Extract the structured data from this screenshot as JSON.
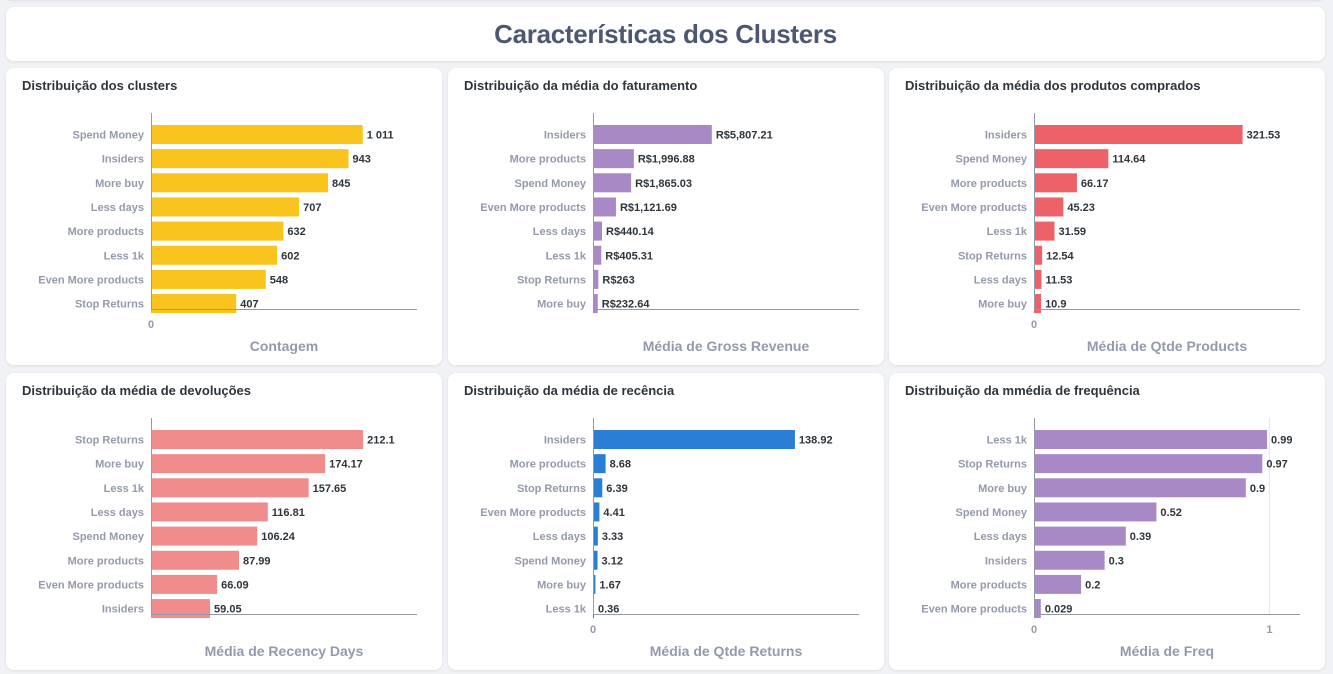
{
  "page": {
    "title": "Características dos Clusters"
  },
  "chart_data": [
    {
      "type": "bar",
      "orientation": "horizontal",
      "title": "Distribuição dos clusters",
      "xlabel": "Contagem",
      "color": "#f9c41d",
      "xlim": [
        0,
        1270
      ],
      "ticks": [
        {
          "value": 0,
          "label": "0"
        }
      ],
      "categories": [
        "Spend Money",
        "Insiders",
        "More buy",
        "Less days",
        "More products",
        "Less 1k",
        "Even More products",
        "Stop Returns"
      ],
      "values": [
        1011,
        943,
        845,
        707,
        632,
        602,
        548,
        407
      ],
      "labels": [
        "1 011",
        "943",
        "845",
        "707",
        "632",
        "602",
        "548",
        "407"
      ]
    },
    {
      "type": "bar",
      "orientation": "horizontal",
      "title": "Distribuição da média do faturamento",
      "xlabel": "Média de Gross Revenue",
      "color": "#a989c5",
      "xlim": [
        0,
        13000
      ],
      "ticks": [],
      "categories": [
        "Insiders",
        "More products",
        "Spend Money",
        "Even More products",
        "Less days",
        "Less 1k",
        "Stop Returns",
        "More buy"
      ],
      "values": [
        5807.21,
        1996.88,
        1865.03,
        1121.69,
        440.14,
        405.31,
        263,
        232.64
      ],
      "labels": [
        "R$5,807.21",
        "R$1,996.88",
        "R$1,865.03",
        "R$1,121.69",
        "R$440.14",
        "R$405.31",
        "R$263",
        "R$232.64"
      ]
    },
    {
      "type": "bar",
      "orientation": "horizontal",
      "title": "Distribuição da média dos produtos comprados",
      "xlabel": "Média de Qtde Products",
      "color": "#ed6168",
      "xlim": [
        0,
        410
      ],
      "ticks": [
        {
          "value": 0,
          "label": "0"
        }
      ],
      "categories": [
        "Insiders",
        "Spend Money",
        "More products",
        "Even More products",
        "Less 1k",
        "Stop Returns",
        "Less days",
        "More buy"
      ],
      "values": [
        321.53,
        114.64,
        66.17,
        45.23,
        31.59,
        12.54,
        11.53,
        10.9
      ],
      "labels": [
        "321.53",
        "114.64",
        "66.17",
        "45.23",
        "31.59",
        "12.54",
        "11.53",
        "10.9"
      ]
    },
    {
      "type": "bar",
      "orientation": "horizontal",
      "title": "Distribuição da média de devoluções",
      "xlabel": "Média de Recency Days",
      "color": "#f08c8c",
      "xlim": [
        0,
        266
      ],
      "ticks": [],
      "categories": [
        "Stop Returns",
        "More buy",
        "Less 1k",
        "Less days",
        "Spend Money",
        "More products",
        "Even More products",
        "Insiders"
      ],
      "values": [
        212.1,
        174.17,
        157.65,
        116.81,
        106.24,
        87.99,
        66.09,
        59.05
      ],
      "labels": [
        "212.1",
        "174.17",
        "157.65",
        "116.81",
        "106.24",
        "87.99",
        "66.09",
        "59.05"
      ]
    },
    {
      "type": "bar",
      "orientation": "horizontal",
      "title": "Distribuição da média de recência",
      "xlabel": "Média de Qtde Returns",
      "color": "#2a7fd4",
      "xlim": [
        0,
        183
      ],
      "ticks": [
        {
          "value": 0,
          "label": "0"
        }
      ],
      "categories": [
        "Insiders",
        "More products",
        "Stop Returns",
        "Even More products",
        "Less days",
        "Spend Money",
        "More buy",
        "Less 1k"
      ],
      "values": [
        138.92,
        8.68,
        6.39,
        4.41,
        3.33,
        3.12,
        1.67,
        0.36
      ],
      "labels": [
        "138.92",
        "8.68",
        "6.39",
        "4.41",
        "3.33",
        "3.12",
        "1.67",
        "0.36"
      ]
    },
    {
      "type": "bar",
      "orientation": "horizontal",
      "title": "Distribuição da mmédia de frequência",
      "xlabel": "Média de Freq",
      "color": "#a989c5",
      "xlim": [
        0,
        1.13
      ],
      "ticks": [
        {
          "value": 0,
          "label": "0"
        },
        {
          "value": 1,
          "label": "1"
        }
      ],
      "categories": [
        "Less 1k",
        "Stop Returns",
        "More buy",
        "Spend Money",
        "Less days",
        "Insiders",
        "More products",
        "Even More products"
      ],
      "values": [
        0.99,
        0.97,
        0.9,
        0.52,
        0.39,
        0.3,
        0.2,
        0.029
      ],
      "labels": [
        "0.99",
        "0.97",
        "0.9",
        "0.52",
        "0.39",
        "0.3",
        "0.2",
        "0.029"
      ]
    }
  ]
}
